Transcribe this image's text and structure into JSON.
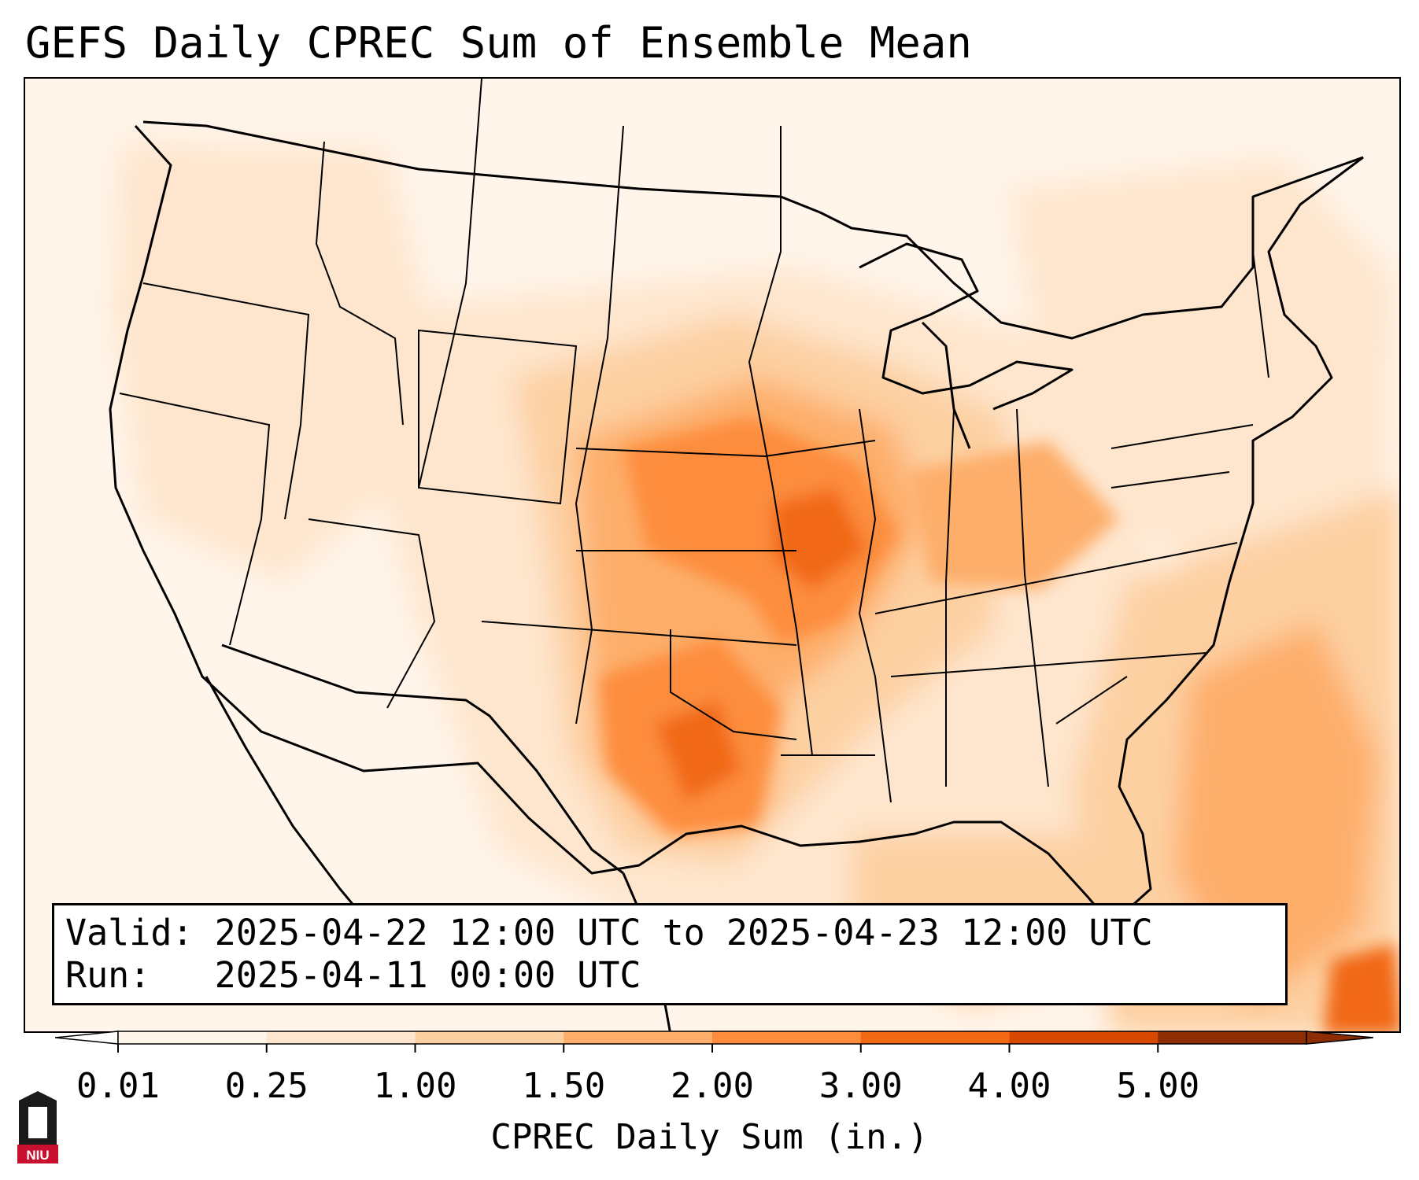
{
  "title": "GEFS Daily CPREC Sum of Ensemble Mean",
  "info": {
    "valid_label": "Valid:",
    "valid_value": "2025-04-22 12:00 UTC to 2025-04-23 12:00 UTC",
    "run_label": "Run:",
    "run_value": "2025-04-11 00:00 UTC"
  },
  "colorbar": {
    "label": "CPREC Daily Sum (in.)",
    "ticks": [
      "0.01",
      "0.25",
      "1.00",
      "1.50",
      "2.00",
      "3.00",
      "4.00",
      "5.00"
    ],
    "colors": [
      "#fff5eb",
      "#fee6ce",
      "#fdd0a2",
      "#fdae6b",
      "#fd8d3c",
      "#f16913",
      "#d94801",
      "#8c2d04"
    ]
  },
  "logo": {
    "text": "NIU"
  },
  "map_region": "Contiguous United States"
}
